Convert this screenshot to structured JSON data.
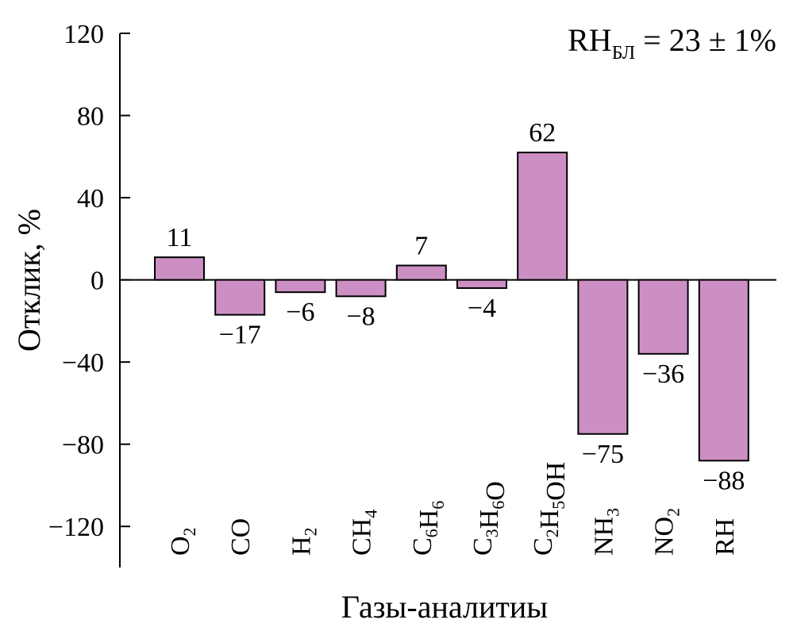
{
  "chart_data": {
    "type": "bar",
    "categories": [
      {
        "base": "O",
        "sub": "2"
      },
      {
        "base": "CO",
        "sub": ""
      },
      {
        "base": "H",
        "sub": "2"
      },
      {
        "base": "CH",
        "sub": "4"
      },
      {
        "parts": [
          [
            "C",
            "6"
          ],
          [
            "H",
            "6"
          ]
        ]
      },
      {
        "parts": [
          [
            "C",
            "3"
          ],
          [
            "H",
            "6"
          ],
          [
            "O",
            ""
          ]
        ]
      },
      {
        "parts": [
          [
            "C",
            "2"
          ],
          [
            "H",
            "5"
          ],
          [
            "OH",
            ""
          ]
        ]
      },
      {
        "base": "NH",
        "sub": "3"
      },
      {
        "base": "NO",
        "sub": "2"
      },
      {
        "base": "RH",
        "sub": ""
      }
    ],
    "values": [
      11,
      -17,
      -6,
      -8,
      7,
      -4,
      62,
      -75,
      -36,
      -88
    ],
    "data_labels": [
      "11",
      "−17",
      "−6",
      "−8",
      "7",
      "−4",
      "62",
      "−75",
      "−36",
      "−88"
    ],
    "ylabel": "Отклик, %",
    "xlabel": "Газы-аналитиы",
    "ylim": [
      -140,
      120
    ],
    "yticks": [
      120,
      80,
      40,
      0,
      -40,
      -80,
      -120
    ],
    "ytick_labels": [
      "120",
      "80",
      "40",
      "0",
      "−40",
      "−80",
      "−120"
    ],
    "annotation": {
      "base": "RH",
      "sub": "БЛ",
      "rest": " = 23 ± 1%"
    },
    "bar_color": "#cc8fc4",
    "grid": false,
    "legend": "none"
  }
}
